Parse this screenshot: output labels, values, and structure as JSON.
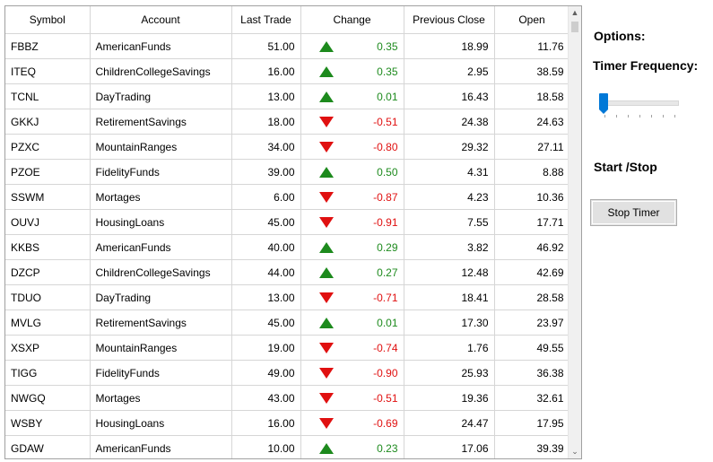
{
  "grid": {
    "columns": [
      "Symbol",
      "Account",
      "Last Trade",
      "Change",
      "Previous Close",
      "Open"
    ],
    "rows": [
      {
        "symbol": "FBBZ",
        "account": "AmericanFunds",
        "last_trade": "51.00",
        "direction": "up",
        "change": "0.35",
        "previous_close": "18.99",
        "open": "11.76"
      },
      {
        "symbol": "ITEQ",
        "account": "ChildrenCollegeSavings",
        "last_trade": "16.00",
        "direction": "up",
        "change": "0.35",
        "previous_close": "2.95",
        "open": "38.59"
      },
      {
        "symbol": "TCNL",
        "account": "DayTrading",
        "last_trade": "13.00",
        "direction": "up",
        "change": "0.01",
        "previous_close": "16.43",
        "open": "18.58"
      },
      {
        "symbol": "GKKJ",
        "account": "RetirementSavings",
        "last_trade": "18.00",
        "direction": "down",
        "change": "-0.51",
        "previous_close": "24.38",
        "open": "24.63"
      },
      {
        "symbol": "PZXC",
        "account": "MountainRanges",
        "last_trade": "34.00",
        "direction": "down",
        "change": "-0.80",
        "previous_close": "29.32",
        "open": "27.11"
      },
      {
        "symbol": "PZOE",
        "account": "FidelityFunds",
        "last_trade": "39.00",
        "direction": "up",
        "change": "0.50",
        "previous_close": "4.31",
        "open": "8.88"
      },
      {
        "symbol": "SSWM",
        "account": "Mortages",
        "last_trade": "6.00",
        "direction": "down",
        "change": "-0.87",
        "previous_close": "4.23",
        "open": "10.36"
      },
      {
        "symbol": "OUVJ",
        "account": "HousingLoans",
        "last_trade": "45.00",
        "direction": "down",
        "change": "-0.91",
        "previous_close": "7.55",
        "open": "17.71"
      },
      {
        "symbol": "KKBS",
        "account": "AmericanFunds",
        "last_trade": "40.00",
        "direction": "up",
        "change": "0.29",
        "previous_close": "3.82",
        "open": "46.92"
      },
      {
        "symbol": "DZCP",
        "account": "ChildrenCollegeSavings",
        "last_trade": "44.00",
        "direction": "up",
        "change": "0.27",
        "previous_close": "12.48",
        "open": "42.69"
      },
      {
        "symbol": "TDUO",
        "account": "DayTrading",
        "last_trade": "13.00",
        "direction": "down",
        "change": "-0.71",
        "previous_close": "18.41",
        "open": "28.58"
      },
      {
        "symbol": "MVLG",
        "account": "RetirementSavings",
        "last_trade": "45.00",
        "direction": "up",
        "change": "0.01",
        "previous_close": "17.30",
        "open": "23.97"
      },
      {
        "symbol": "XSXP",
        "account": "MountainRanges",
        "last_trade": "19.00",
        "direction": "down",
        "change": "-0.74",
        "previous_close": "1.76",
        "open": "49.55"
      },
      {
        "symbol": "TIGG",
        "account": "FidelityFunds",
        "last_trade": "49.00",
        "direction": "down",
        "change": "-0.90",
        "previous_close": "25.93",
        "open": "36.38"
      },
      {
        "symbol": "NWGQ",
        "account": "Mortages",
        "last_trade": "43.00",
        "direction": "down",
        "change": "-0.51",
        "previous_close": "19.36",
        "open": "32.61"
      },
      {
        "symbol": "WSBY",
        "account": "HousingLoans",
        "last_trade": "16.00",
        "direction": "down",
        "change": "-0.69",
        "previous_close": "24.47",
        "open": "17.95"
      },
      {
        "symbol": "GDAW",
        "account": "AmericanFunds",
        "last_trade": "10.00",
        "direction": "up",
        "change": "0.23",
        "previous_close": "17.06",
        "open": "39.39"
      }
    ]
  },
  "options": {
    "title": "Options:",
    "timer_frequency_label": "Timer Frequency:",
    "slider_value_fraction": 0.0,
    "start_stop_label": "Start /Stop",
    "stop_button_label": "Stop Timer"
  },
  "colors": {
    "up": "#1d8a1d",
    "down": "#e01010",
    "slider_accent": "#0078d7"
  },
  "icons": {
    "up": "triangle-up-icon",
    "down": "triangle-down-icon",
    "scroll_up": "chevron-up-icon",
    "scroll_down": "chevron-down-icon"
  }
}
